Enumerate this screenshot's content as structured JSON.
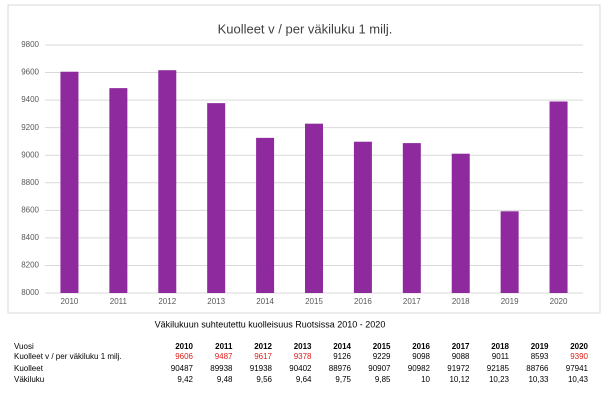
{
  "chart_data": {
    "type": "bar",
    "title": "Kuolleet v / per väkiluku 1 milj.",
    "categories": [
      "2010",
      "2011",
      "2012",
      "2013",
      "2014",
      "2015",
      "2016",
      "2017",
      "2018",
      "2019",
      "2020"
    ],
    "values": [
      9606,
      9487,
      9617,
      9378,
      9126,
      9229,
      9098,
      9088,
      9011,
      8593,
      9390
    ],
    "color": "#8e2a9e",
    "ylim": [
      8000,
      9800
    ],
    "yticks": [
      8000,
      8200,
      8400,
      8600,
      8800,
      9000,
      9200,
      9400,
      9600,
      9800
    ],
    "grid": true
  },
  "table": {
    "caption": "Väkilukuun suhteutettu kuolleisuus Ruotsissa 2010 - 2020",
    "header": [
      "Vuosi",
      "2010",
      "2011",
      "2012",
      "2013",
      "2014",
      "2015",
      "2016",
      "2017",
      "2018",
      "2019",
      "2020"
    ],
    "rows": [
      {
        "cells": [
          "Kuolleet v / per väkiluku 1 milj.",
          "9606",
          "9487",
          "9617",
          "9378",
          "9126",
          "9229",
          "9098",
          "9088",
          "9011",
          "8593",
          "9390"
        ],
        "colors": [
          "#000000",
          "#e0201b",
          "#e0201b",
          "#e0201b",
          "#e0201b",
          "#000000",
          "#000000",
          "#000000",
          "#000000",
          "#000000",
          "#000000",
          "#e0201b"
        ]
      },
      {
        "cells": [
          "Kuolleet",
          "90487",
          "89938",
          "91938",
          "90402",
          "88976",
          "90907",
          "90982",
          "91972",
          "92185",
          "88766",
          "97941"
        ]
      },
      {
        "cells": [
          "Väkiluku",
          "9,42",
          "9,48",
          "9,56",
          "9,64",
          "9,75",
          "9,85",
          "10",
          "10,12",
          "10,23",
          "10,33",
          "10,43"
        ]
      }
    ]
  }
}
